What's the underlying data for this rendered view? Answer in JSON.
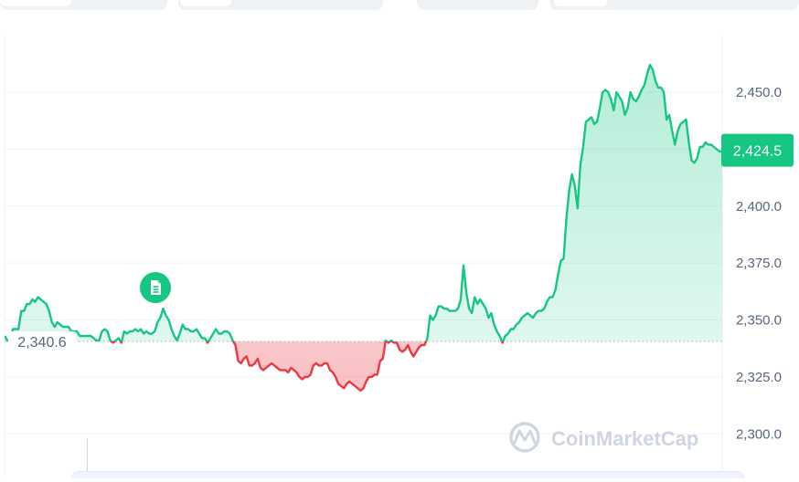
{
  "toolbar": {
    "tabs": [
      "",
      "",
      "",
      ""
    ]
  },
  "colors": {
    "up": "#16c784",
    "down": "#ea3943",
    "grid": "#eff2f5",
    "axis_text": "#58667e",
    "reference": "#a6b0c3",
    "watermark": "#c7cfdc"
  },
  "watermark": "CoinMarketCap",
  "news_marker_icon": "document-icon",
  "chart_data": {
    "type": "area",
    "title": "",
    "xlabel": "",
    "ylabel": "",
    "ylim": [
      2291,
      2466
    ],
    "yticks": [
      2300.0,
      2325.0,
      2350.0,
      2375.0,
      2400.0,
      2425.0,
      2450.0
    ],
    "ytick_labels": [
      "2,300.0",
      "2,325.0",
      "2,350.0",
      "2,375.0",
      "2,400.0",
      "2,425.0",
      "2,450.0"
    ],
    "reference_value": 2340.6,
    "reference_label": "2,340.6",
    "current_value": 2424.5,
    "current_label": "2,424.5",
    "grid": true,
    "legend": "none",
    "series": [
      {
        "values": [
          2343,
          2341,
          2341,
          2346,
          2346,
          2346,
          2354,
          2354,
          2357,
          2357,
          2359,
          2358,
          2360,
          2359,
          2358,
          2357,
          2354,
          2349,
          2347,
          2349,
          2348,
          2347,
          2347,
          2347,
          2345,
          2345,
          2345,
          2343,
          2343,
          2343,
          2343,
          2343,
          2342,
          2341,
          2341,
          2345,
          2346,
          2345,
          2341,
          2340,
          2341,
          2342,
          2340,
          2345,
          2344,
          2345,
          2345,
          2346,
          2345,
          2346,
          2344,
          2345,
          2344,
          2344,
          2345,
          2349,
          2351,
          2355,
          2352,
          2350,
          2346,
          2343,
          2341,
          2344,
          2348,
          2346,
          2346,
          2345,
          2345,
          2346,
          2344,
          2342,
          2342,
          2340,
          2342,
          2344,
          2346,
          2344,
          2344,
          2345,
          2345,
          2344,
          2341,
          2339,
          2332,
          2331,
          2333,
          2334,
          2330,
          2330,
          2331,
          2333,
          2329,
          2328,
          2329,
          2330,
          2331,
          2330,
          2329,
          2328,
          2328,
          2328,
          2327,
          2329,
          2328,
          2327,
          2325,
          2324,
          2325,
          2325,
          2326,
          2330,
          2331,
          2330,
          2330,
          2331,
          2331,
          2328,
          2327,
          2325,
          2322,
          2321,
          2320,
          2322,
          2323,
          2322,
          2321,
          2320,
          2319,
          2320,
          2323,
          2325,
          2325,
          2326,
          2326,
          2332,
          2333,
          2341,
          2340,
          2341,
          2340,
          2340,
          2337,
          2336,
          2337,
          2339,
          2336,
          2334,
          2336,
          2338,
          2339,
          2339,
          2342,
          2352,
          2350,
          2352,
          2356,
          2356,
          2355,
          2355,
          2354,
          2354,
          2354,
          2355,
          2359,
          2374,
          2362,
          2355,
          2353,
          2360,
          2357,
          2359,
          2357,
          2355,
          2351,
          2353,
          2348,
          2345,
          2343,
          2340,
          2343,
          2344,
          2346,
          2346,
          2348,
          2349,
          2351,
          2352,
          2353,
          2352,
          2351,
          2353,
          2354,
          2354,
          2355,
          2358,
          2360,
          2360,
          2363,
          2370,
          2376,
          2377,
          2395,
          2407,
          2414,
          2409,
          2399,
          2418,
          2426,
          2437,
          2438,
          2439,
          2436,
          2437,
          2443,
          2450,
          2451,
          2450,
          2447,
          2442,
          2450,
          2448,
          2446,
          2440,
          2443,
          2450,
          2447,
          2446,
          2448,
          2451,
          2453,
          2458,
          2462,
          2460,
          2455,
          2452,
          2452,
          2450,
          2438,
          2440,
          2433,
          2427,
          2433,
          2436,
          2437,
          2438,
          2428,
          2420,
          2419,
          2421,
          2426,
          2426,
          2428,
          2427,
          2427,
          2426,
          2425,
          2424,
          2424
        ]
      }
    ]
  }
}
